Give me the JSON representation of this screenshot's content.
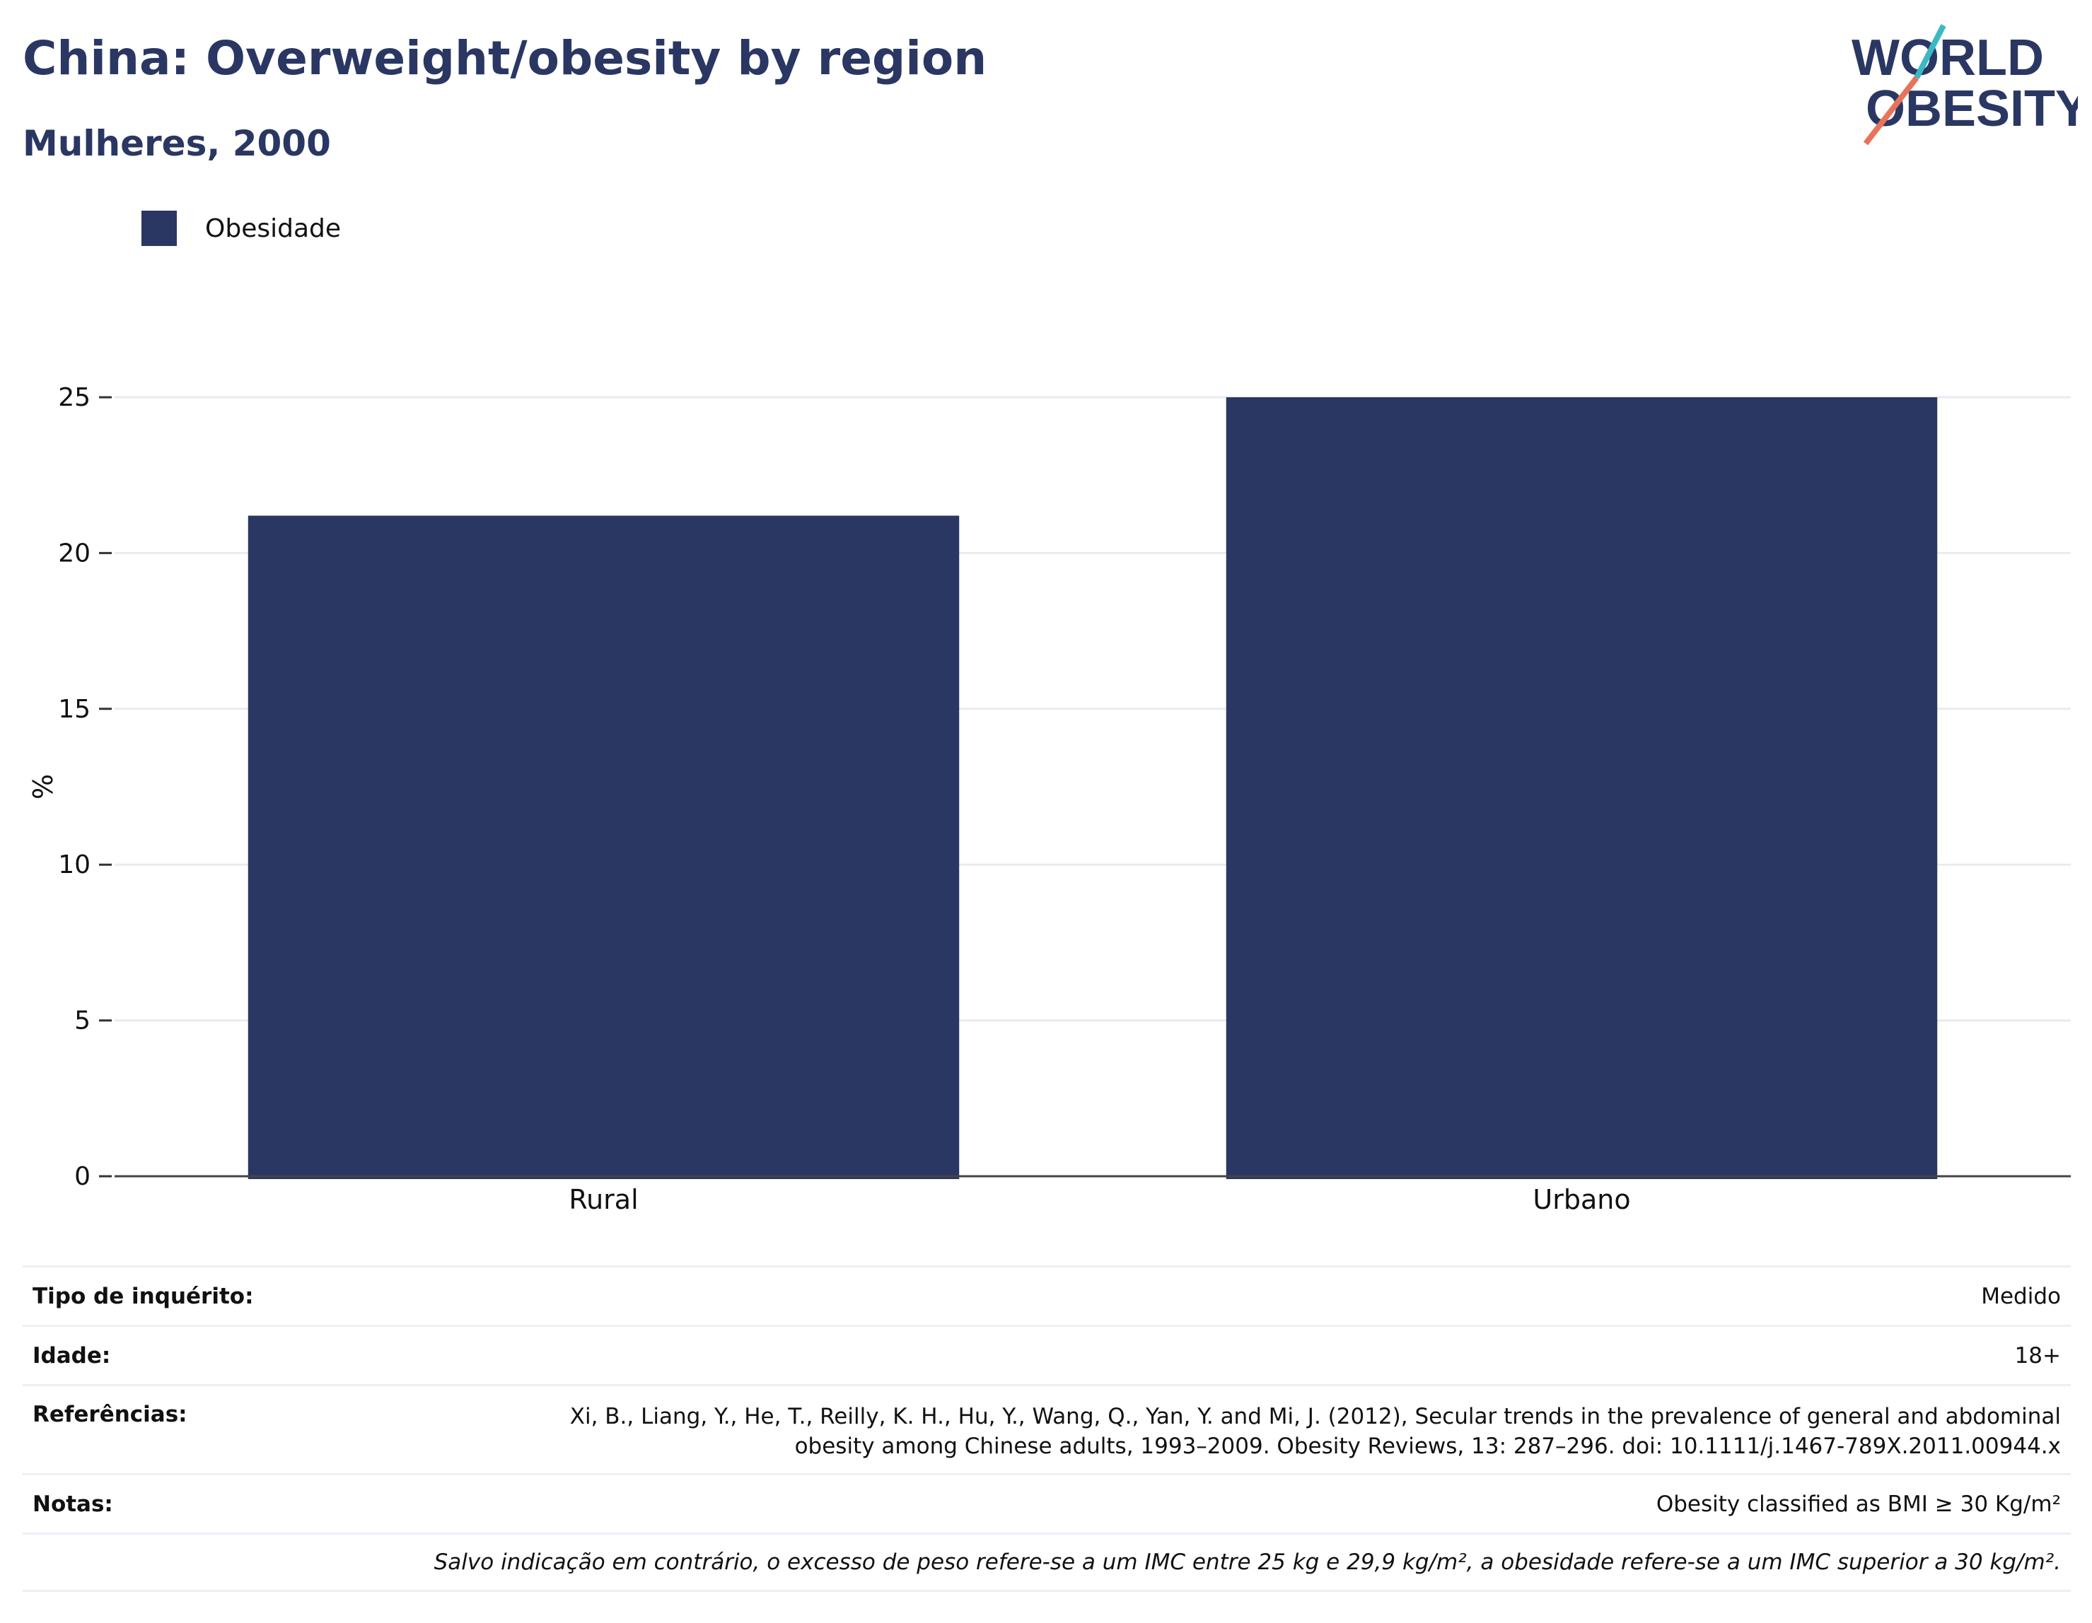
{
  "header": {
    "title": "China: Overweight/obesity by region",
    "subtitle": "Mulheres, 2000"
  },
  "logo": {
    "line1": "WORLD",
    "line2": "OBESITY",
    "color_text": "#2a3763",
    "color_slash_teal": "#3bb8c3",
    "color_slash_coral": "#e8735a"
  },
  "legend": {
    "label": "Obesidade",
    "color": "#2a3763"
  },
  "chart_data": {
    "type": "bar",
    "categories": [
      "Rural",
      "Urbano"
    ],
    "series": [
      {
        "name": "Obesidade",
        "values": [
          21.2,
          25.0
        ],
        "color": "#2a3763"
      }
    ],
    "title": "China: Overweight/obesity by region",
    "subtitle": "Mulheres, 2000",
    "xlabel": "",
    "ylabel": "%",
    "ylim": [
      0,
      25
    ],
    "yticks": [
      0,
      5,
      10,
      15,
      20,
      25
    ],
    "grid": true,
    "legend_position": "top-left"
  },
  "info_table": {
    "survey_type_label": "Tipo de inquérito:",
    "survey_type_value": "Medido",
    "age_label": "Idade:",
    "age_value": "18+",
    "references_label": "Referências:",
    "references_value_line1": "Xi, B., Liang, Y., He, T., Reilly, K. H., Hu, Y., Wang, Q., Yan, Y. and Mi, J. (2012), Secular trends in the prevalence of general and abdominal",
    "references_value_line2": "obesity among Chinese adults, 1993–2009. Obesity Reviews, 13: 287–296. doi: 10.1111/j.1467-789X.2011.00944.x",
    "notes_label": "Notas:",
    "notes_value": "Obesity classified as BMI ≥ 30 Kg/m²",
    "footnote": "Salvo indicação em contrário, o excesso de peso refere-se a um IMC entre 25 kg e 29,9 kg/m², a obesidade refere-se a um IMC superior a 30 kg/m²."
  }
}
